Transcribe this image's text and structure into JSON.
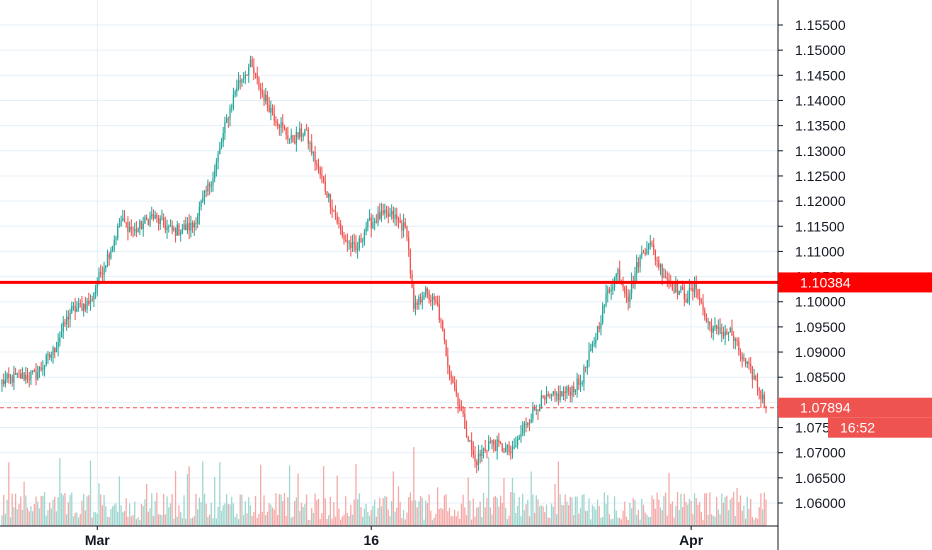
{
  "chart_data": {
    "type": "candlestick",
    "title": "",
    "xlabel": "",
    "ylabel": "",
    "ylim": [
      1.0545,
      1.1595
    ],
    "price_ticks": [
      "1.15500",
      "1.15000",
      "1.14500",
      "1.14000",
      "1.13500",
      "1.13000",
      "1.12500",
      "1.12000",
      "1.11500",
      "1.11000",
      "1.10500",
      "1.10000",
      "1.09500",
      "1.09000",
      "1.08500",
      "1.08000",
      "1.07500",
      "1.07000",
      "1.06500",
      "1.06000"
    ],
    "time_ticks": [
      {
        "label": "Mar",
        "index": 56
      },
      {
        "label": "16",
        "index": 217
      },
      {
        "label": "Apr",
        "index": 405
      }
    ],
    "horizontal_line": {
      "value": 1.10384,
      "label": "1.10384",
      "color": "#ff0000"
    },
    "last_price": {
      "value": 1.07894,
      "label": "1.07894",
      "countdown": "16:52",
      "color": "#ef5350"
    },
    "colors": {
      "up": "#26a69a",
      "down": "#ef5350",
      "volume_up": "#9fd6cf",
      "volume_down": "#f5a9a7",
      "grid": "#e6f0f7",
      "axis": "#131722"
    },
    "grid": true,
    "bar_count": 450,
    "price_path": [
      {
        "i": 0,
        "p": 1.084
      },
      {
        "i": 8,
        "p": 1.085
      },
      {
        "i": 20,
        "p": 1.0855
      },
      {
        "i": 30,
        "p": 1.09
      },
      {
        "i": 40,
        "p": 1.098
      },
      {
        "i": 52,
        "p": 1.1
      },
      {
        "i": 56,
        "p": 1.104
      },
      {
        "i": 62,
        "p": 1.109
      },
      {
        "i": 70,
        "p": 1.116
      },
      {
        "i": 78,
        "p": 1.114
      },
      {
        "i": 88,
        "p": 1.117
      },
      {
        "i": 100,
        "p": 1.114
      },
      {
        "i": 112,
        "p": 1.115
      },
      {
        "i": 118,
        "p": 1.12
      },
      {
        "i": 125,
        "p": 1.126
      },
      {
        "i": 132,
        "p": 1.136
      },
      {
        "i": 138,
        "p": 1.143
      },
      {
        "i": 146,
        "p": 1.147
      },
      {
        "i": 152,
        "p": 1.142
      },
      {
        "i": 160,
        "p": 1.137
      },
      {
        "i": 170,
        "p": 1.132
      },
      {
        "i": 178,
        "p": 1.134
      },
      {
        "i": 186,
        "p": 1.126
      },
      {
        "i": 194,
        "p": 1.119
      },
      {
        "i": 200,
        "p": 1.113
      },
      {
        "i": 208,
        "p": 1.11
      },
      {
        "i": 214,
        "p": 1.115
      },
      {
        "i": 222,
        "p": 1.117
      },
      {
        "i": 230,
        "p": 1.117
      },
      {
        "i": 238,
        "p": 1.114
      },
      {
        "i": 242,
        "p": 1.098
      },
      {
        "i": 248,
        "p": 1.102
      },
      {
        "i": 256,
        "p": 1.099
      },
      {
        "i": 262,
        "p": 1.088
      },
      {
        "i": 270,
        "p": 1.078
      },
      {
        "i": 278,
        "p": 1.068
      },
      {
        "i": 286,
        "p": 1.072
      },
      {
        "i": 294,
        "p": 1.071
      },
      {
        "i": 300,
        "p": 1.07
      },
      {
        "i": 308,
        "p": 1.076
      },
      {
        "i": 316,
        "p": 1.08
      },
      {
        "i": 324,
        "p": 1.081
      },
      {
        "i": 332,
        "p": 1.082
      },
      {
        "i": 340,
        "p": 1.084
      },
      {
        "i": 348,
        "p": 1.092
      },
      {
        "i": 356,
        "p": 1.102
      },
      {
        "i": 362,
        "p": 1.106
      },
      {
        "i": 368,
        "p": 1.101
      },
      {
        "i": 374,
        "p": 1.108
      },
      {
        "i": 380,
        "p": 1.112
      },
      {
        "i": 388,
        "p": 1.106
      },
      {
        "i": 395,
        "p": 1.103
      },
      {
        "i": 402,
        "p": 1.101
      },
      {
        "i": 408,
        "p": 1.103
      },
      {
        "i": 414,
        "p": 1.096
      },
      {
        "i": 420,
        "p": 1.094
      },
      {
        "i": 428,
        "p": 1.094
      },
      {
        "i": 436,
        "p": 1.088
      },
      {
        "i": 442,
        "p": 1.085
      },
      {
        "i": 449,
        "p": 1.07894
      }
    ]
  }
}
